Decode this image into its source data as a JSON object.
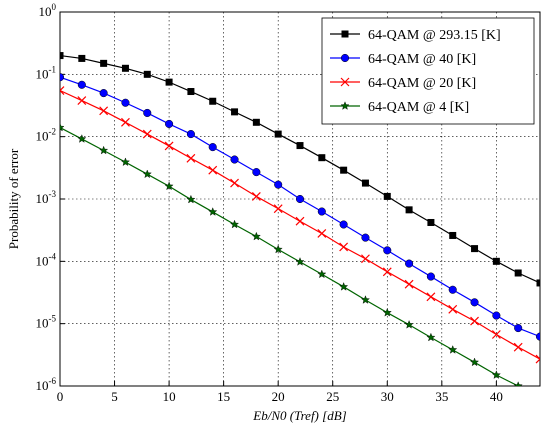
{
  "chart_data": {
    "type": "line",
    "x_label": "Eb/N0 (Tref) [dB]",
    "y_label": "Probability of error",
    "x": [
      0,
      2,
      4,
      6,
      8,
      10,
      12,
      14,
      16,
      18,
      20,
      22,
      24,
      26,
      28,
      30,
      32,
      34,
      36,
      38,
      40,
      42,
      44
    ],
    "series": [
      {
        "name": "64-QAM @ 293.15 [K]",
        "color": "#000000",
        "marker": "square",
        "values": [
          0.2,
          0.18,
          0.15,
          0.125,
          0.1,
          0.075,
          0.053,
          0.037,
          0.025,
          0.017,
          0.011,
          0.0072,
          0.0046,
          0.0029,
          0.0018,
          0.0011,
          0.00067,
          0.00042,
          0.00026,
          0.00016,
          0.0001,
          6.5e-05,
          4.5e-05
        ]
      },
      {
        "name": "64-QAM @ 40 [K]",
        "color": "#0000ff",
        "marker": "circle",
        "values": [
          0.09,
          0.068,
          0.05,
          0.035,
          0.024,
          0.016,
          0.011,
          0.0068,
          0.0043,
          0.0027,
          0.0017,
          0.001,
          0.00063,
          0.00039,
          0.00024,
          0.00015,
          9.2e-05,
          5.7e-05,
          3.5e-05,
          2.2e-05,
          1.35e-05,
          8.5e-06,
          6.2e-06
        ]
      },
      {
        "name": "64-QAM @ 20 [K]",
        "color": "#ff0000",
        "marker": "x",
        "values": [
          0.055,
          0.038,
          0.026,
          0.017,
          0.011,
          0.0071,
          0.0045,
          0.0029,
          0.0018,
          0.0011,
          0.0007,
          0.00044,
          0.00028,
          0.00017,
          0.00011,
          6.8e-05,
          4.3e-05,
          2.7e-05,
          1.7e-05,
          1.1e-05,
          6.7e-06,
          4.2e-06,
          2.7e-06
        ]
      },
      {
        "name": "64-QAM @ 4 [K]",
        "color": "#006400",
        "marker": "star",
        "values": [
          0.014,
          0.0092,
          0.006,
          0.0039,
          0.0025,
          0.0016,
          0.00098,
          0.00062,
          0.00039,
          0.00025,
          0.000155,
          9.8e-05,
          6.2e-05,
          3.9e-05,
          2.4e-05,
          1.5e-05,
          9.6e-06,
          6e-06,
          3.8e-06,
          2.4e-06,
          1.5e-06,
          1e-06,
          null
        ]
      }
    ],
    "xlim": [
      0,
      44
    ],
    "xticks": [
      0,
      5,
      10,
      15,
      20,
      25,
      30,
      35,
      40
    ],
    "ylim": [
      1e-06,
      1
    ],
    "yticks": [
      {
        "value": 1e-06,
        "label": "10^-6"
      },
      {
        "value": 1e-05,
        "label": "10^-5"
      },
      {
        "value": 0.0001,
        "label": "10^-4"
      },
      {
        "value": 0.001,
        "label": "10^-3"
      },
      {
        "value": 0.01,
        "label": "10^-2"
      },
      {
        "value": 0.1,
        "label": "10^-1"
      },
      {
        "value": 1,
        "label": "10^0"
      }
    ],
    "y_log": true,
    "grid": true,
    "legend": "upper right"
  }
}
